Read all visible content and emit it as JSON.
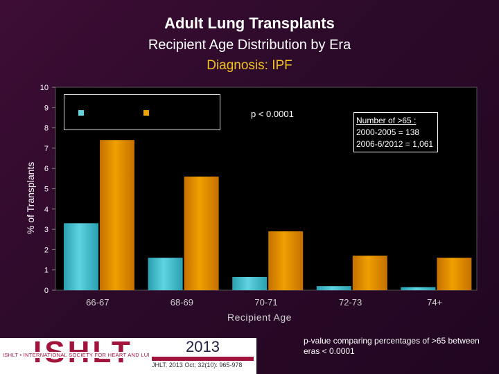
{
  "header": {
    "title": "Adult Lung Transplants",
    "subtitle": "Recipient Age Distribution by Era",
    "diagnosis": "Diagnosis: IPF"
  },
  "colors": {
    "series1": "#5fd3e0",
    "series2": "#f0a000",
    "plot_bg": "#000000",
    "diagnosis_text": "#f0c020",
    "logo": "#a3143c"
  },
  "chart_data": {
    "type": "bar",
    "title": "Adult Lung Transplants",
    "xlabel": "Recipient Age",
    "ylabel": "% of Transplants",
    "categories": [
      "66-67",
      "68-69",
      "70-71",
      "72-73",
      "74+"
    ],
    "ylim": [
      0,
      10
    ],
    "yticks": [
      "0",
      "1",
      "2",
      "3",
      "4",
      "5",
      "6",
      "7",
      "8",
      "9",
      "10"
    ],
    "series": [
      {
        "values": [
          3.3,
          1.6,
          0.65,
          0.2,
          0.15
        ]
      },
      {
        "values": [
          7.4,
          5.6,
          2.9,
          1.7,
          1.6
        ]
      }
    ],
    "grid": false,
    "legend_position": "top-left"
  },
  "annotations": {
    "p_value": "p < 0.0001",
    "number_title": "Number of >65 :",
    "number_line1": "2000-2005 = 138",
    "number_line2": "2006-6/2012 = 1,061"
  },
  "footer": {
    "logo_text": "ISHLT",
    "logo_subtitle": "ISHLT • INTERNATIONAL SOCIETY FOR HEART AND LUNG TRANSPLANTATION",
    "year": "2013",
    "citation": "JHLT. 2013 Oct; 32(10): 965-978",
    "note": "p-value comparing percentages of >65 between eras < 0.0001"
  }
}
